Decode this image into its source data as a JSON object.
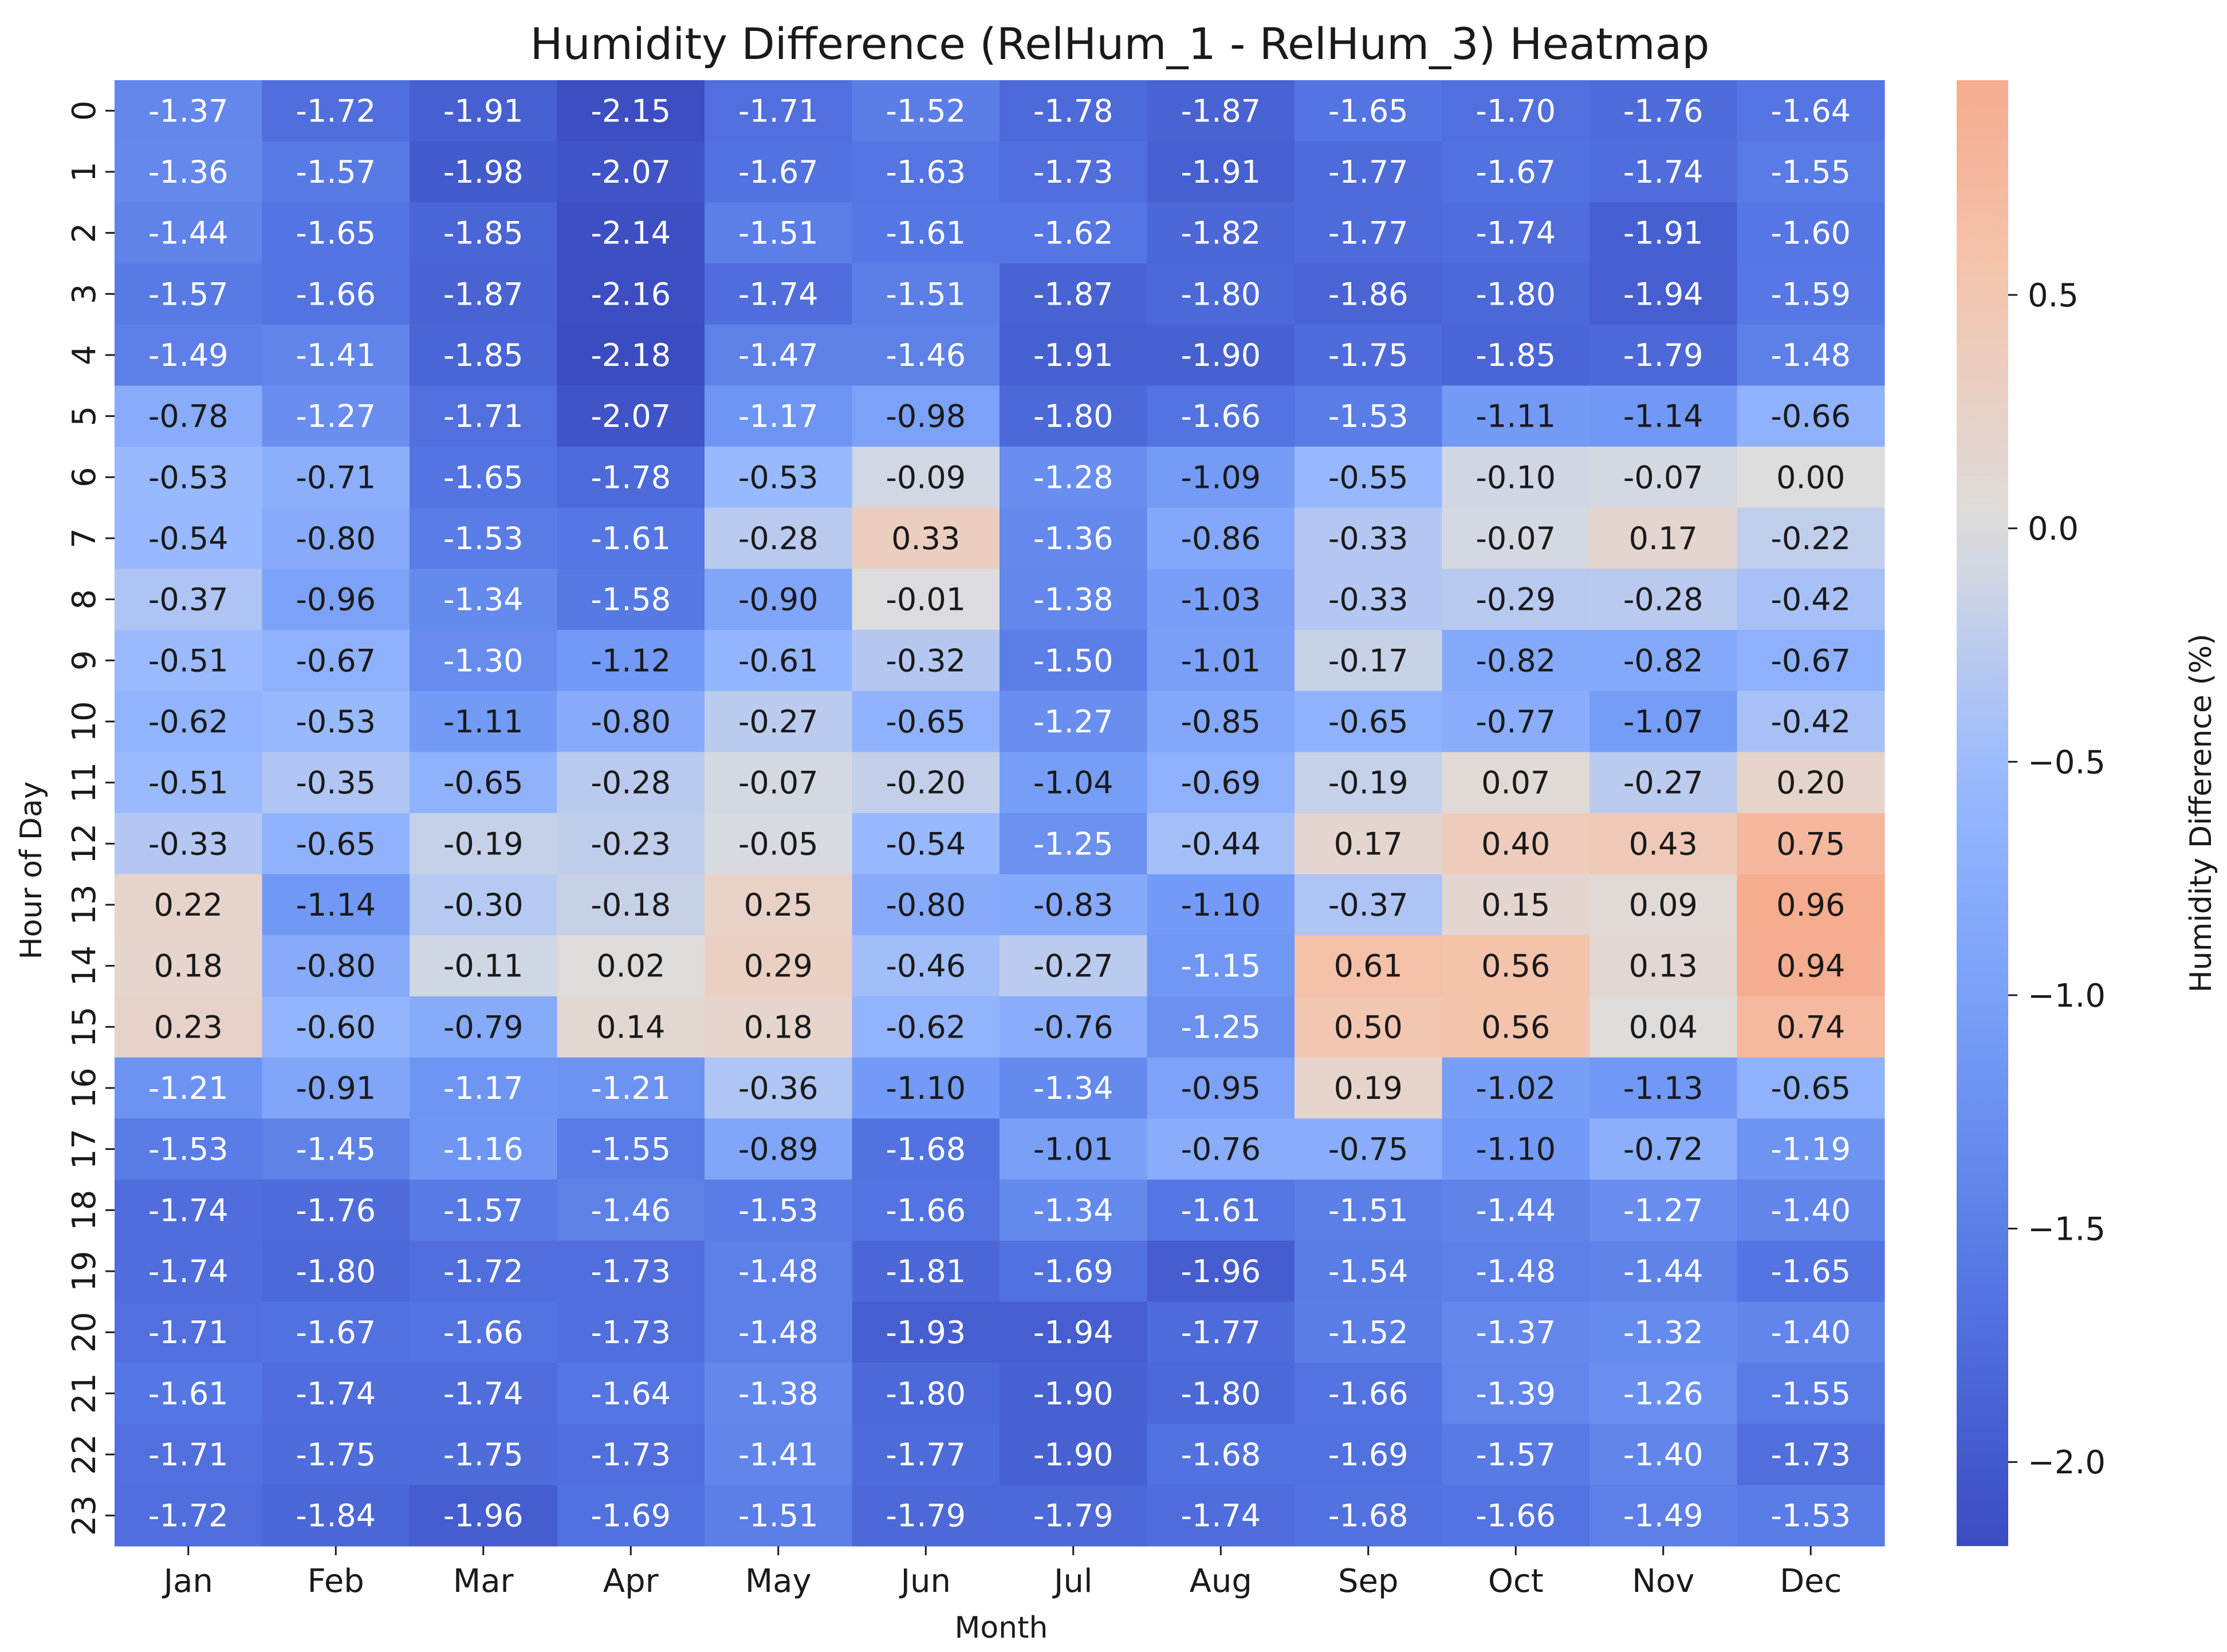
{
  "chart_data": {
    "type": "heatmap",
    "title": "Humidity Difference (RelHum_1 - RelHum_3) Heatmap",
    "xlabel": "Month",
    "ylabel": "Hour of Day",
    "colorbar_label": "Humidity Difference (%)",
    "colormap": "coolwarm",
    "color_range": [
      -2.18,
      0.96
    ],
    "color_center": 0.0,
    "colorbar_ticks": [
      0.5,
      0.0,
      -0.5,
      -1.0,
      -1.5,
      -2.0
    ],
    "colorbar_tick_labels": [
      "0.5",
      "0.0",
      "−0.5",
      "−1.0",
      "−1.5",
      "−2.0"
    ],
    "x_categories": [
      "Jan",
      "Feb",
      "Mar",
      "Apr",
      "May",
      "Jun",
      "Jul",
      "Aug",
      "Sep",
      "Oct",
      "Nov",
      "Dec"
    ],
    "y_categories": [
      "0",
      "1",
      "2",
      "3",
      "4",
      "5",
      "6",
      "7",
      "8",
      "9",
      "10",
      "11",
      "12",
      "13",
      "14",
      "15",
      "16",
      "17",
      "18",
      "19",
      "20",
      "21",
      "22",
      "23"
    ],
    "values": [
      [
        -1.37,
        -1.72,
        -1.91,
        -2.15,
        -1.71,
        -1.52,
        -1.78,
        -1.87,
        -1.65,
        -1.7,
        -1.76,
        -1.64
      ],
      [
        -1.36,
        -1.57,
        -1.98,
        -2.07,
        -1.67,
        -1.63,
        -1.73,
        -1.91,
        -1.77,
        -1.67,
        -1.74,
        -1.55
      ],
      [
        -1.44,
        -1.65,
        -1.85,
        -2.14,
        -1.51,
        -1.61,
        -1.62,
        -1.82,
        -1.77,
        -1.74,
        -1.91,
        -1.6
      ],
      [
        -1.57,
        -1.66,
        -1.87,
        -2.16,
        -1.74,
        -1.51,
        -1.87,
        -1.8,
        -1.86,
        -1.8,
        -1.94,
        -1.59
      ],
      [
        -1.49,
        -1.41,
        -1.85,
        -2.18,
        -1.47,
        -1.46,
        -1.91,
        -1.9,
        -1.75,
        -1.85,
        -1.79,
        -1.48
      ],
      [
        -0.78,
        -1.27,
        -1.71,
        -2.07,
        -1.17,
        -0.98,
        -1.8,
        -1.66,
        -1.53,
        -1.11,
        -1.14,
        -0.66
      ],
      [
        -0.53,
        -0.71,
        -1.65,
        -1.78,
        -0.53,
        -0.09,
        -1.28,
        -1.09,
        -0.55,
        -0.1,
        -0.07,
        0.0
      ],
      [
        -0.54,
        -0.8,
        -1.53,
        -1.61,
        -0.28,
        0.33,
        -1.36,
        -0.86,
        -0.33,
        -0.07,
        0.17,
        -0.22
      ],
      [
        -0.37,
        -0.96,
        -1.34,
        -1.58,
        -0.9,
        -0.01,
        -1.38,
        -1.03,
        -0.33,
        -0.29,
        -0.28,
        -0.42
      ],
      [
        -0.51,
        -0.67,
        -1.3,
        -1.12,
        -0.61,
        -0.32,
        -1.5,
        -1.01,
        -0.17,
        -0.82,
        -0.82,
        -0.67
      ],
      [
        -0.62,
        -0.53,
        -1.11,
        -0.8,
        -0.27,
        -0.65,
        -1.27,
        -0.85,
        -0.65,
        -0.77,
        -1.07,
        -0.42
      ],
      [
        -0.51,
        -0.35,
        -0.65,
        -0.28,
        -0.07,
        -0.2,
        -1.04,
        -0.69,
        -0.19,
        0.07,
        -0.27,
        0.2
      ],
      [
        -0.33,
        -0.65,
        -0.19,
        -0.23,
        -0.05,
        -0.54,
        -1.25,
        -0.44,
        0.17,
        0.4,
        0.43,
        0.75
      ],
      [
        0.22,
        -1.14,
        -0.3,
        -0.18,
        0.25,
        -0.8,
        -0.83,
        -1.1,
        -0.37,
        0.15,
        0.09,
        0.96
      ],
      [
        0.18,
        -0.8,
        -0.11,
        0.02,
        0.29,
        -0.46,
        -0.27,
        -1.15,
        0.61,
        0.56,
        0.13,
        0.94
      ],
      [
        0.23,
        -0.6,
        -0.79,
        0.14,
        0.18,
        -0.62,
        -0.76,
        -1.25,
        0.5,
        0.56,
        0.04,
        0.74
      ],
      [
        -1.21,
        -0.91,
        -1.17,
        -1.21,
        -0.36,
        -1.1,
        -1.34,
        -0.95,
        0.19,
        -1.02,
        -1.13,
        -0.65
      ],
      [
        -1.53,
        -1.45,
        -1.16,
        -1.55,
        -0.89,
        -1.68,
        -1.01,
        -0.76,
        -0.75,
        -1.1,
        -0.72,
        -1.19
      ],
      [
        -1.74,
        -1.76,
        -1.57,
        -1.46,
        -1.53,
        -1.66,
        -1.34,
        -1.61,
        -1.51,
        -1.44,
        -1.27,
        -1.4
      ],
      [
        -1.74,
        -1.8,
        -1.72,
        -1.73,
        -1.48,
        -1.81,
        -1.69,
        -1.96,
        -1.54,
        -1.48,
        -1.44,
        -1.65
      ],
      [
        -1.71,
        -1.67,
        -1.66,
        -1.73,
        -1.48,
        -1.93,
        -1.94,
        -1.77,
        -1.52,
        -1.37,
        -1.32,
        -1.4
      ],
      [
        -1.61,
        -1.74,
        -1.74,
        -1.64,
        -1.38,
        -1.8,
        -1.9,
        -1.8,
        -1.66,
        -1.39,
        -1.26,
        -1.55
      ],
      [
        -1.71,
        -1.75,
        -1.75,
        -1.73,
        -1.41,
        -1.77,
        -1.9,
        -1.68,
        -1.69,
        -1.57,
        -1.4,
        -1.73
      ],
      [
        -1.72,
        -1.84,
        -1.96,
        -1.69,
        -1.51,
        -1.79,
        -1.79,
        -1.74,
        -1.68,
        -1.66,
        -1.49,
        -1.53
      ]
    ],
    "grid": false,
    "annotations": "two-decimal values printed in each cell"
  }
}
